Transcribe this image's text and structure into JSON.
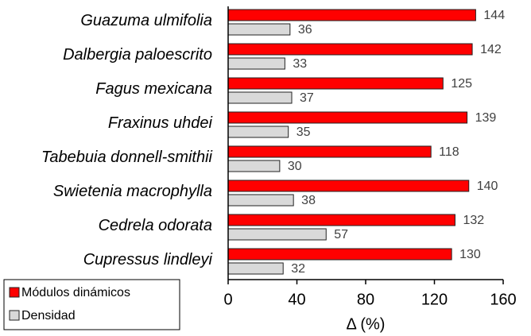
{
  "chart_data": {
    "type": "bar",
    "orientation": "horizontal",
    "categories": [
      "Guazuma ulmifolia",
      "Dalbergia paloescrito",
      "Fagus mexicana",
      "Fraxinus uhdei",
      "Tabebuia donnell-smithii",
      "Swietenia macrophylla",
      "Cedrela odorata",
      "Cupressus lindleyi"
    ],
    "series": [
      {
        "name": "Módulos dinámicos",
        "color": "#ff0000",
        "values": [
          144,
          142,
          125,
          139,
          118,
          140,
          132,
          130
        ]
      },
      {
        "name": "Densidad",
        "color": "#d9d9d9",
        "values": [
          36,
          33,
          37,
          35,
          30,
          38,
          57,
          32
        ]
      }
    ],
    "x_label": "Δ (%)",
    "xlim": [
      0,
      160
    ],
    "xticks": [
      0,
      40,
      80,
      120,
      160
    ],
    "legend": "lower left",
    "grid": false
  }
}
